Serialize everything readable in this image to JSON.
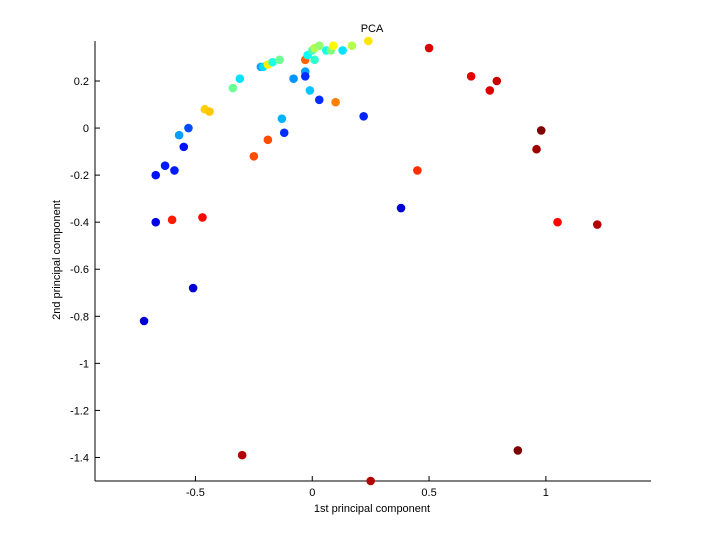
{
  "chart_data": {
    "type": "scatter",
    "title": "PCA",
    "xlabel": "1st principal component",
    "ylabel": "2nd principal component",
    "xlim": [
      -0.93,
      1.45
    ],
    "ylim": [
      -1.5,
      0.37
    ],
    "xticks": [
      -0.5,
      0,
      0.5,
      1
    ],
    "xtick_labels": [
      "-0.5",
      "0",
      "0.5",
      "1"
    ],
    "yticks": [
      0.2,
      0,
      -0.2,
      -0.4,
      -0.6,
      -0.8,
      -1,
      -1.2,
      -1.4
    ],
    "ytick_labels": [
      "0.2",
      "0",
      "-0.2",
      "-0.4",
      "-0.6",
      "-0.8",
      "-1",
      "-1.2",
      "-1.4"
    ],
    "grid": false,
    "colormap": "jet",
    "points": [
      {
        "x": -0.72,
        "y": -0.82,
        "c": 0.08
      },
      {
        "x": -0.67,
        "y": -0.4,
        "c": 0.1
      },
      {
        "x": -0.67,
        "y": -0.2,
        "c": 0.14
      },
      {
        "x": -0.63,
        "y": -0.16,
        "c": 0.15
      },
      {
        "x": -0.59,
        "y": -0.18,
        "c": 0.15
      },
      {
        "x": -0.6,
        "y": -0.39,
        "c": 0.85
      },
      {
        "x": -0.57,
        "y": -0.03,
        "c": 0.28
      },
      {
        "x": -0.55,
        "y": -0.08,
        "c": 0.14
      },
      {
        "x": -0.53,
        "y": 0.0,
        "c": 0.2
      },
      {
        "x": -0.51,
        "y": -0.68,
        "c": 0.08
      },
      {
        "x": -0.47,
        "y": -0.38,
        "c": 0.87
      },
      {
        "x": -0.46,
        "y": 0.08,
        "c": 0.67
      },
      {
        "x": -0.44,
        "y": 0.07,
        "c": 0.68
      },
      {
        "x": -0.34,
        "y": 0.17,
        "c": 0.48
      },
      {
        "x": -0.31,
        "y": 0.21,
        "c": 0.35
      },
      {
        "x": -0.3,
        "y": -1.39,
        "c": 0.95
      },
      {
        "x": -0.25,
        "y": -0.12,
        "c": 0.8
      },
      {
        "x": -0.22,
        "y": 0.26,
        "c": 0.28
      },
      {
        "x": -0.21,
        "y": 0.26,
        "c": 0.34
      },
      {
        "x": -0.19,
        "y": -0.05,
        "c": 0.8
      },
      {
        "x": -0.19,
        "y": 0.27,
        "c": 0.64
      },
      {
        "x": -0.17,
        "y": 0.28,
        "c": 0.4
      },
      {
        "x": -0.14,
        "y": 0.29,
        "c": 0.48
      },
      {
        "x": -0.13,
        "y": 0.04,
        "c": 0.3
      },
      {
        "x": -0.12,
        "y": -0.02,
        "c": 0.17
      },
      {
        "x": -0.08,
        "y": 0.21,
        "c": 0.27
      },
      {
        "x": -0.03,
        "y": 0.24,
        "c": 0.28
      },
      {
        "x": -0.03,
        "y": 0.22,
        "c": 0.17
      },
      {
        "x": -0.03,
        "y": 0.29,
        "c": 0.78
      },
      {
        "x": -0.02,
        "y": 0.31,
        "c": 0.38
      },
      {
        "x": -0.01,
        "y": 0.16,
        "c": 0.32
      },
      {
        "x": 0.0,
        "y": 0.33,
        "c": 0.45
      },
      {
        "x": 0.01,
        "y": 0.29,
        "c": 0.42
      },
      {
        "x": 0.01,
        "y": 0.34,
        "c": 0.55
      },
      {
        "x": 0.03,
        "y": 0.35,
        "c": 0.52
      },
      {
        "x": 0.03,
        "y": 0.12,
        "c": 0.17
      },
      {
        "x": 0.06,
        "y": 0.33,
        "c": 0.4
      },
      {
        "x": 0.08,
        "y": 0.33,
        "c": 0.5
      },
      {
        "x": 0.09,
        "y": 0.35,
        "c": 0.63
      },
      {
        "x": 0.1,
        "y": 0.11,
        "c": 0.75
      },
      {
        "x": 0.13,
        "y": 0.33,
        "c": 0.35
      },
      {
        "x": 0.17,
        "y": 0.35,
        "c": 0.55
      },
      {
        "x": 0.22,
        "y": 0.05,
        "c": 0.16
      },
      {
        "x": 0.24,
        "y": 0.37,
        "c": 0.65
      },
      {
        "x": 0.25,
        "y": -1.5,
        "c": 0.95
      },
      {
        "x": 0.38,
        "y": -0.34,
        "c": 0.08
      },
      {
        "x": 0.45,
        "y": -0.18,
        "c": 0.83
      },
      {
        "x": 0.5,
        "y": 0.34,
        "c": 0.91
      },
      {
        "x": 0.68,
        "y": 0.22,
        "c": 0.9
      },
      {
        "x": 0.76,
        "y": 0.16,
        "c": 0.91
      },
      {
        "x": 0.79,
        "y": 0.2,
        "c": 0.93
      },
      {
        "x": 0.88,
        "y": -1.37,
        "c": 1.0
      },
      {
        "x": 0.96,
        "y": -0.09,
        "c": 0.97
      },
      {
        "x": 0.98,
        "y": -0.01,
        "c": 1.0
      },
      {
        "x": 1.05,
        "y": -0.4,
        "c": 0.87
      },
      {
        "x": 1.22,
        "y": -0.41,
        "c": 0.95
      }
    ]
  }
}
